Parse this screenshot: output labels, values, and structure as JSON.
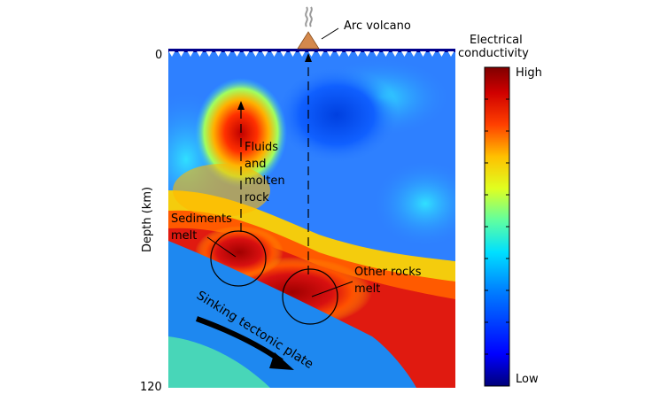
{
  "volcano": {
    "label": "Arc volcano"
  },
  "axis": {
    "label": "Depth (km)",
    "ticks": [
      "0",
      "120"
    ]
  },
  "colorbar": {
    "title": [
      "Electrical",
      "conductivity"
    ],
    "high": "High",
    "low": "Low",
    "colors": [
      "#00007a",
      "#0000ff",
      "#0080ff",
      "#00e0ff",
      "#60ffa0",
      "#e0ff20",
      "#ffc000",
      "#ff4000",
      "#d00000",
      "#800000"
    ]
  },
  "labels": {
    "fluids": [
      "Fluids",
      "and",
      "molten",
      "rock"
    ],
    "sediments": [
      "Sediments",
      "melt"
    ],
    "other_rocks": [
      "Other rocks",
      "melt"
    ],
    "plate": "Sinking tectonic plate"
  },
  "colors": {
    "background_blue": "#2e80ff",
    "plate_blue": "#1e88f0",
    "plate_core": "#48d6b8",
    "melt_red": "#c81010",
    "surface": "#00008b",
    "volcano": "#d4884c"
  }
}
